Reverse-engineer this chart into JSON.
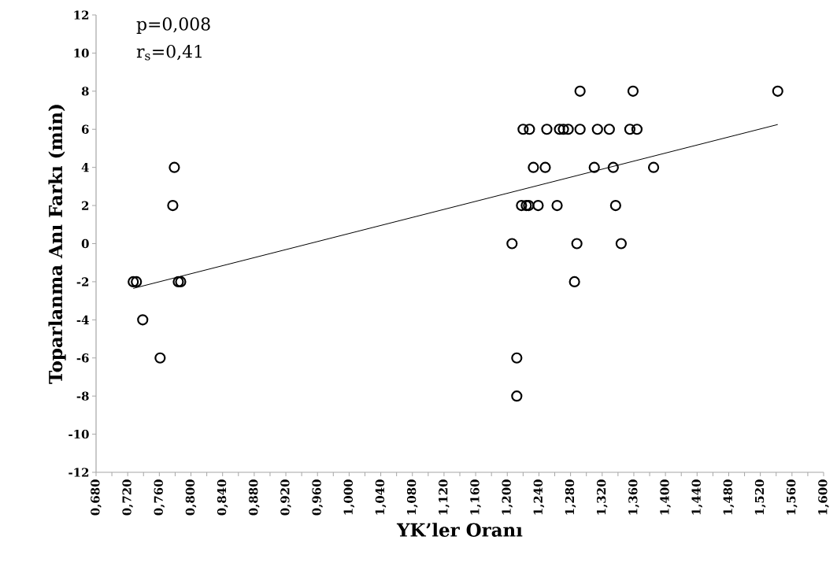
{
  "chart_data": {
    "type": "scatter",
    "xlabel": "YK’ler Oranı",
    "ylabel": "Toparlanma Anı Farkı (min)",
    "annotations": [
      "p=0,008",
      "r$_{s}$=0,41"
    ],
    "xlim": [
      0.68,
      1.6
    ],
    "ylim": [
      -12,
      12
    ],
    "xticks": [
      {
        "value": 0.68,
        "label": "0,680"
      },
      {
        "value": 0.72,
        "label": "0,720"
      },
      {
        "value": 0.76,
        "label": "0,760"
      },
      {
        "value": 0.8,
        "label": "0,800"
      },
      {
        "value": 0.84,
        "label": "0,840"
      },
      {
        "value": 0.88,
        "label": "0,880"
      },
      {
        "value": 0.92,
        "label": "0,920"
      },
      {
        "value": 0.96,
        "label": "0,960"
      },
      {
        "value": 1.0,
        "label": "1,000"
      },
      {
        "value": 1.04,
        "label": "1,040"
      },
      {
        "value": 1.08,
        "label": "1,080"
      },
      {
        "value": 1.12,
        "label": "1,120"
      },
      {
        "value": 1.16,
        "label": "1,160"
      },
      {
        "value": 1.2,
        "label": "1,200"
      },
      {
        "value": 1.24,
        "label": "1,240"
      },
      {
        "value": 1.28,
        "label": "1,280"
      },
      {
        "value": 1.32,
        "label": "1,320"
      },
      {
        "value": 1.36,
        "label": "1,360"
      },
      {
        "value": 1.4,
        "label": "1,400"
      },
      {
        "value": 1.44,
        "label": "1,440"
      },
      {
        "value": 1.48,
        "label": "1,480"
      },
      {
        "value": 1.52,
        "label": "1,520"
      },
      {
        "value": 1.56,
        "label": "1,560"
      },
      {
        "value": 1.6,
        "label": "1,600"
      }
    ],
    "yticks": [
      -12,
      -10,
      -8,
      -6,
      -4,
      -2,
      0,
      2,
      4,
      6,
      8,
      10,
      12
    ],
    "series": [
      {
        "marker": "circle",
        "color": "#000000",
        "x": [
          0.779,
          0.777,
          0.727,
          0.731,
          0.784,
          0.787,
          0.739,
          0.761,
          1.292,
          1.359,
          1.22,
          1.228,
          1.25,
          1.266,
          1.271,
          1.277,
          1.292,
          1.314,
          1.329,
          1.355,
          1.364,
          1.233,
          1.248,
          1.31,
          1.334,
          1.385,
          1.218,
          1.224,
          1.227,
          1.239,
          1.263,
          1.337,
          1.206,
          1.288,
          1.344,
          1.285,
          1.212,
          1.212,
          1.542
        ],
        "values": [
          4,
          2,
          -2,
          -2,
          -2,
          -2,
          -4,
          -6,
          8,
          8,
          6,
          6,
          6,
          6,
          6,
          6,
          6,
          6,
          6,
          6,
          6,
          4,
          4,
          4,
          4,
          4,
          2,
          2,
          2,
          2,
          2,
          2,
          0,
          0,
          0,
          -2,
          -6,
          -8,
          8
        ]
      },
      {
        "type": "line",
        "color": "#000000",
        "x": [
          0.727,
          1.542
        ],
        "values": [
          -2.35,
          6.25
        ]
      }
    ]
  }
}
